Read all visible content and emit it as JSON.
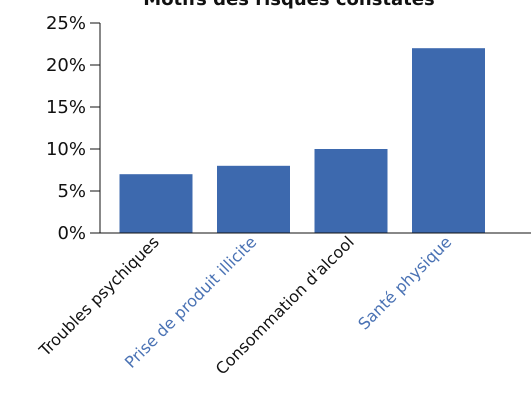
{
  "chart_data": {
    "type": "bar",
    "title": "Motifs des risques constatés",
    "categories": [
      "Troubles psychiques",
      "Prise de produit illicite",
      "Consommation d'alcool",
      "Santé physique"
    ],
    "values": [
      7,
      8,
      10,
      22
    ],
    "ylim": [
      0,
      25
    ],
    "yticks": [
      "0%",
      "5%",
      "10%",
      "15%",
      "20%",
      "25%"
    ],
    "xlabel": "",
    "ylabel": "",
    "grid": false,
    "legend": "none",
    "colors": {
      "bar": "#3d69ae",
      "label_dark": "#111111",
      "label_accent": "#4a72b4",
      "axis": "#111111"
    }
  }
}
